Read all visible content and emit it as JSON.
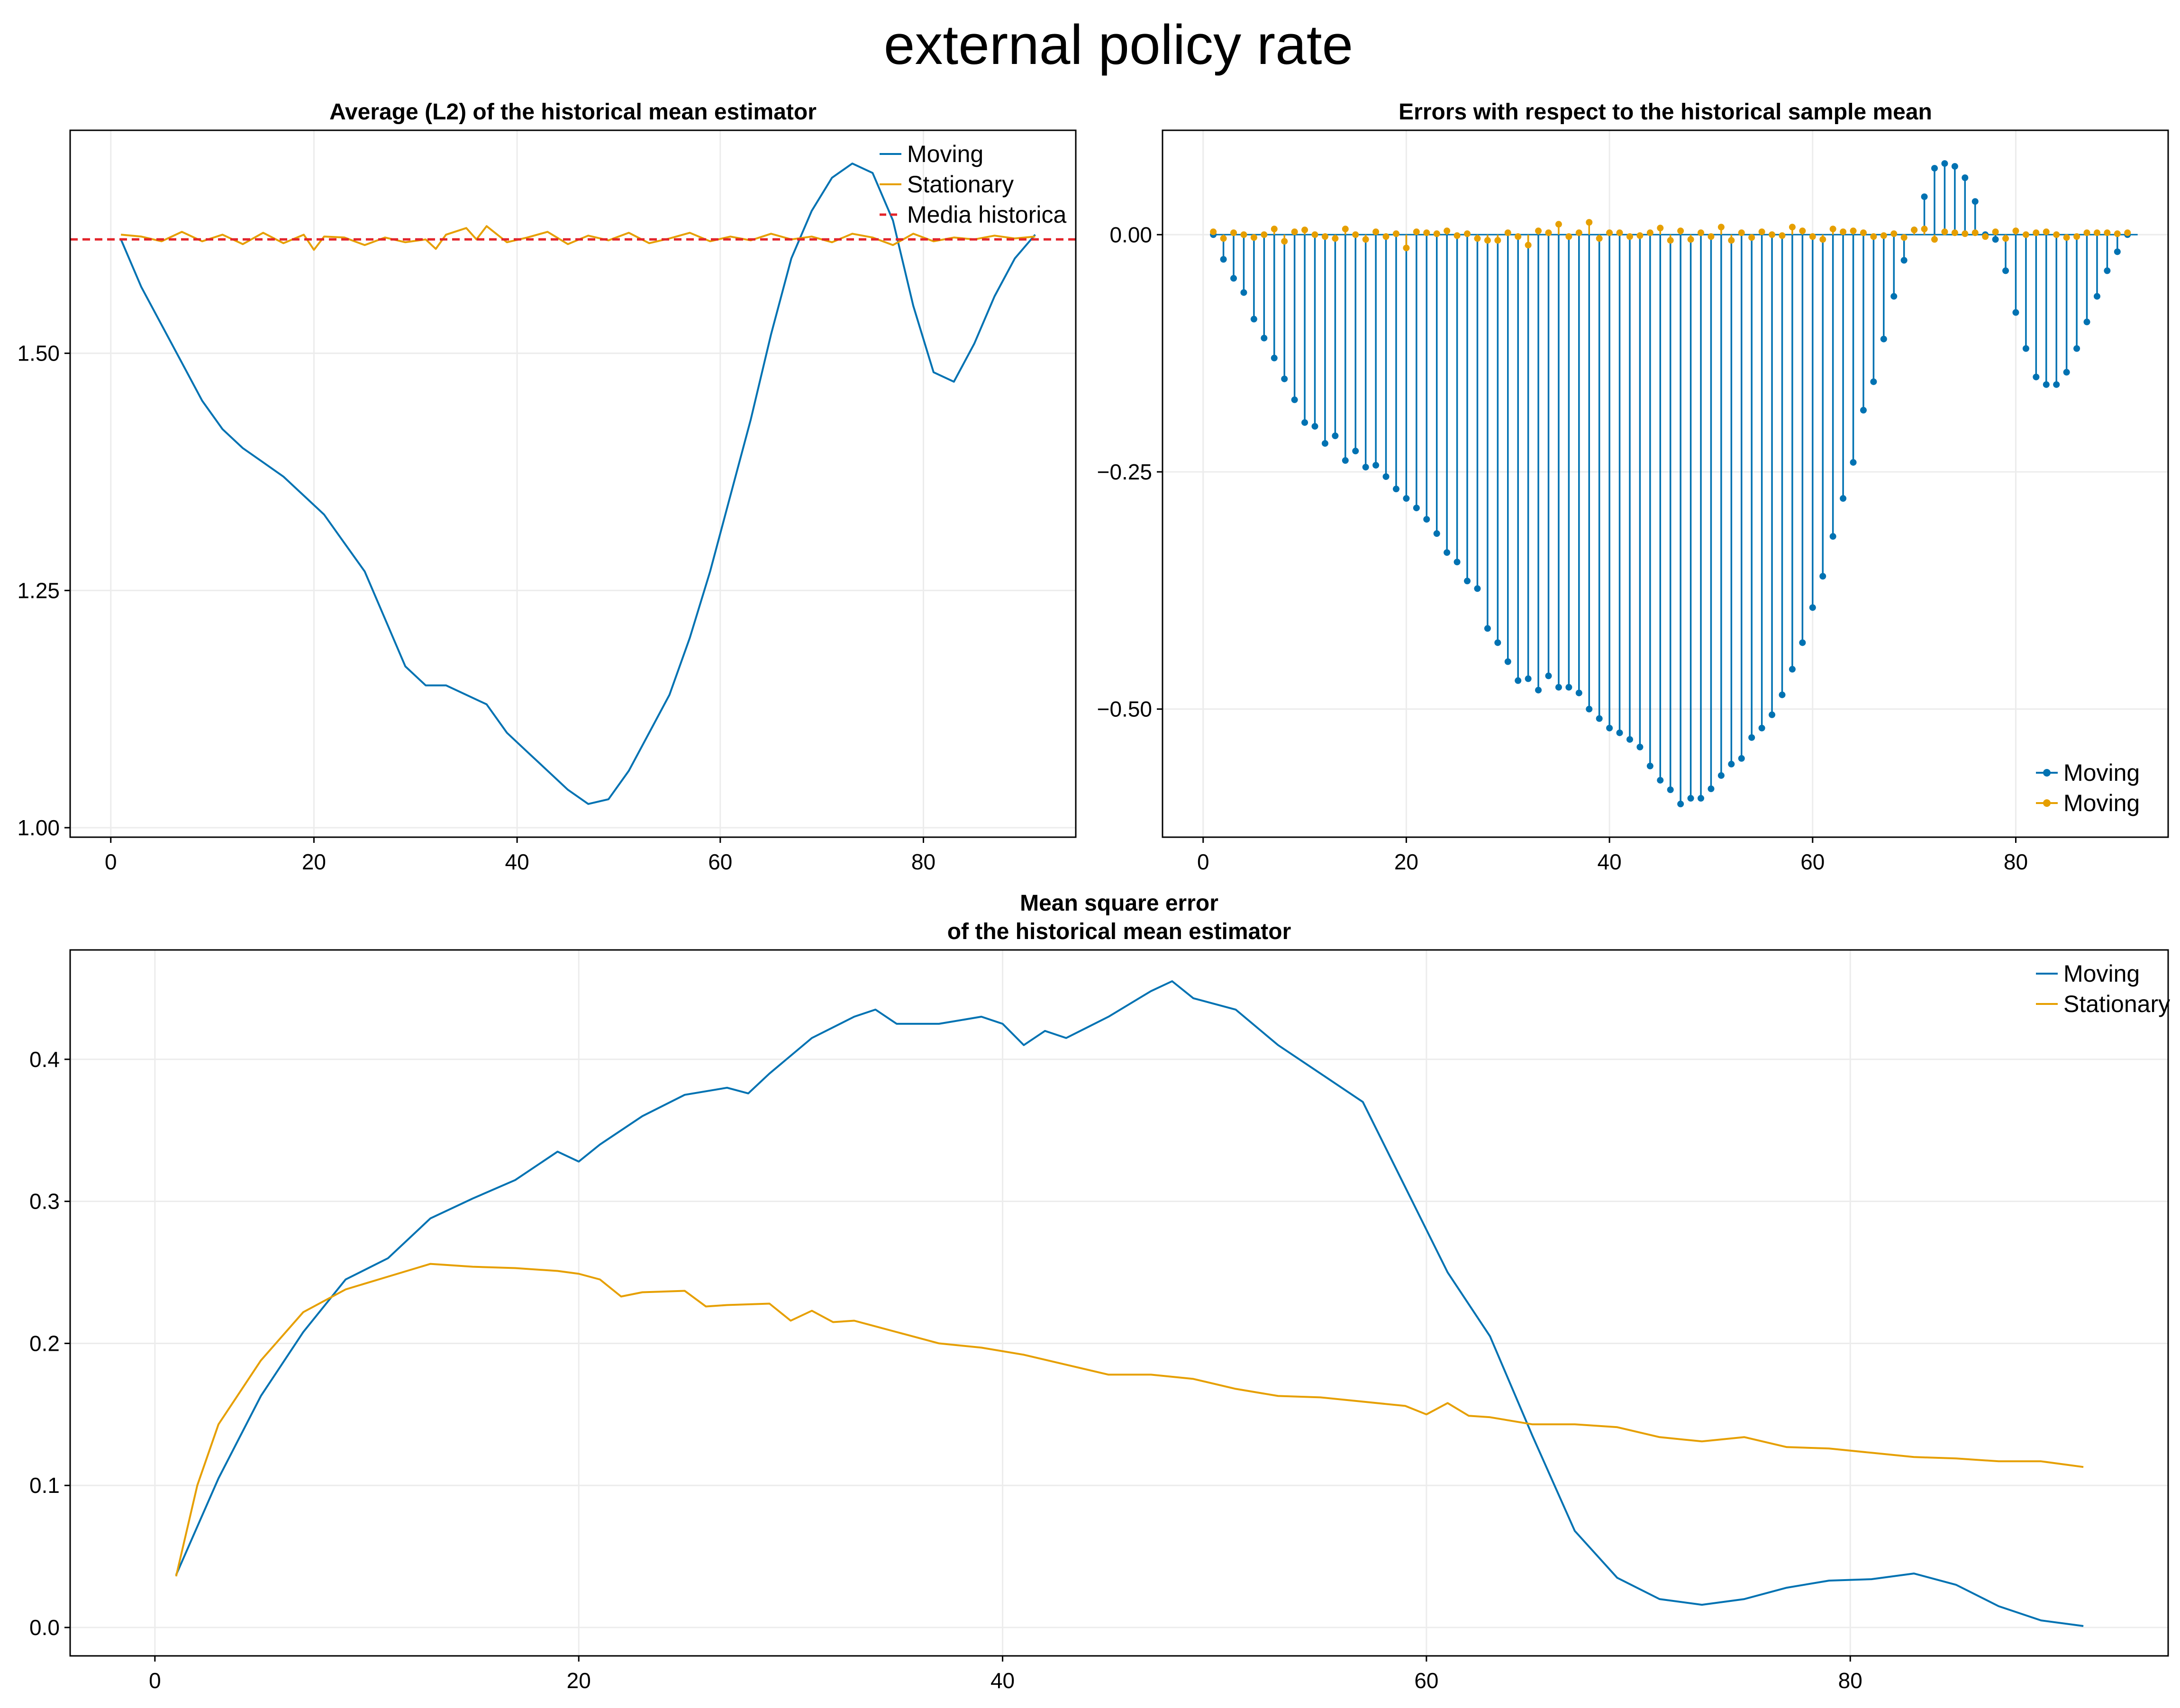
{
  "figure": {
    "title": "external policy rate"
  },
  "colors": {
    "moving": "#0072b2",
    "stationary": "#e69f00",
    "reference": "#e3242b",
    "grid": "#ececec",
    "axis": "#000000"
  },
  "chart_data": [
    {
      "type": "line",
      "title": "Average (L2) of the historical mean estimator",
      "xlim": [
        -4,
        95
      ],
      "ylim": [
        0.99,
        1.735
      ],
      "xticks": [
        0,
        20,
        40,
        60,
        80
      ],
      "xtick_labels": [
        "0",
        "20",
        "40",
        "60",
        "80"
      ],
      "yticks": [
        1.0,
        1.25,
        1.5
      ],
      "ytick_labels": [
        "1.00",
        "1.25",
        "1.50"
      ],
      "grid": true,
      "legend_position": "top-right",
      "series": [
        {
          "name": "Moving",
          "color": "#0072b2",
          "kind": "line",
          "x": [
            1,
            3,
            5,
            7,
            9,
            11,
            13,
            15,
            17,
            19,
            21,
            23,
            25,
            27,
            29,
            31,
            33,
            35,
            37,
            39,
            41,
            43,
            45,
            47,
            49,
            51,
            53,
            55,
            57,
            59,
            61,
            63,
            65,
            67,
            69,
            71,
            73,
            75,
            77,
            79,
            81,
            83,
            85,
            87,
            89,
            91
          ],
          "y": [
            1.62,
            1.57,
            1.53,
            1.49,
            1.45,
            1.42,
            1.4,
            1.385,
            1.37,
            1.35,
            1.33,
            1.3,
            1.27,
            1.22,
            1.17,
            1.15,
            1.15,
            1.14,
            1.13,
            1.1,
            1.08,
            1.06,
            1.04,
            1.025,
            1.03,
            1.06,
            1.1,
            1.14,
            1.2,
            1.27,
            1.35,
            1.43,
            1.52,
            1.6,
            1.65,
            1.685,
            1.7,
            1.69,
            1.64,
            1.55,
            1.48,
            1.47,
            1.51,
            1.56,
            1.6,
            1.625
          ]
        },
        {
          "name": "Stationary",
          "color": "#e69f00",
          "kind": "line",
          "x": [
            1,
            3,
            5,
            7,
            9,
            11,
            13,
            15,
            17,
            19,
            20,
            21,
            23,
            25,
            27,
            29,
            31,
            32,
            33,
            35,
            36,
            37,
            39,
            41,
            43,
            45,
            47,
            49,
            51,
            53,
            55,
            57,
            59,
            61,
            63,
            65,
            67,
            69,
            71,
            73,
            75,
            77,
            79,
            81,
            83,
            85,
            87,
            89,
            91
          ],
          "y": [
            1.625,
            1.623,
            1.618,
            1.628,
            1.618,
            1.625,
            1.615,
            1.627,
            1.616,
            1.625,
            1.609,
            1.623,
            1.622,
            1.614,
            1.622,
            1.617,
            1.62,
            1.61,
            1.625,
            1.632,
            1.62,
            1.634,
            1.617,
            1.622,
            1.628,
            1.615,
            1.624,
            1.619,
            1.627,
            1.616,
            1.621,
            1.627,
            1.618,
            1.623,
            1.619,
            1.626,
            1.62,
            1.623,
            1.617,
            1.626,
            1.622,
            1.614,
            1.626,
            1.618,
            1.622,
            1.62,
            1.624,
            1.621,
            1.623
          ]
        },
        {
          "name": "Media historica",
          "color": "#e3242b",
          "kind": "hline",
          "value": 1.62
        }
      ]
    },
    {
      "type": "stem",
      "title": "Errors with respect to the historical sample mean",
      "xlim": [
        -4,
        95
      ],
      "ylim": [
        -0.635,
        0.11
      ],
      "xticks": [
        0,
        20,
        40,
        60,
        80
      ],
      "xtick_labels": [
        "0",
        "20",
        "40",
        "60",
        "80"
      ],
      "yticks": [
        -0.5,
        -0.25,
        0.0
      ],
      "ytick_labels": [
        "−0.50",
        "−0.25",
        "0.00"
      ],
      "grid": true,
      "legend_position": "bottom-right",
      "series": [
        {
          "name": "Moving",
          "color": "#0072b2",
          "x": [
            1,
            2,
            3,
            4,
            5,
            6,
            7,
            8,
            9,
            10,
            11,
            12,
            13,
            14,
            15,
            16,
            17,
            18,
            19,
            20,
            21,
            22,
            23,
            24,
            25,
            26,
            27,
            28,
            29,
            30,
            31,
            32,
            33,
            34,
            35,
            36,
            37,
            38,
            39,
            40,
            41,
            42,
            43,
            44,
            45,
            46,
            47,
            48,
            49,
            50,
            51,
            52,
            53,
            54,
            55,
            56,
            57,
            58,
            59,
            60,
            61,
            62,
            63,
            64,
            65,
            66,
            67,
            68,
            69,
            70,
            71,
            72,
            73,
            74,
            75,
            76,
            77,
            78,
            79,
            80,
            81,
            82,
            83,
            84,
            85,
            86,
            87,
            88,
            89,
            90,
            91
          ],
          "y": [
            0,
            -0.026,
            -0.046,
            -0.061,
            -0.089,
            -0.109,
            -0.13,
            -0.152,
            -0.174,
            -0.198,
            -0.202,
            -0.22,
            -0.212,
            -0.238,
            -0.228,
            -0.245,
            -0.243,
            -0.255,
            -0.268,
            -0.278,
            -0.288,
            -0.3,
            -0.315,
            -0.335,
            -0.345,
            -0.365,
            -0.373,
            -0.415,
            -0.43,
            -0.45,
            -0.47,
            -0.468,
            -0.48,
            -0.465,
            -0.477,
            -0.477,
            -0.483,
            -0.5,
            -0.51,
            -0.52,
            -0.525,
            -0.532,
            -0.54,
            -0.56,
            -0.575,
            -0.585,
            -0.6,
            -0.594,
            -0.594,
            -0.584,
            -0.57,
            -0.558,
            -0.552,
            -0.53,
            -0.52,
            -0.506,
            -0.485,
            -0.458,
            -0.43,
            -0.393,
            -0.36,
            -0.318,
            -0.278,
            -0.24,
            -0.185,
            -0.155,
            -0.11,
            -0.065,
            -0.027,
            0.005,
            0.04,
            0.07,
            0.075,
            0.072,
            0.06,
            0.035,
            0,
            -0.005,
            -0.038,
            -0.082,
            -0.12,
            -0.15,
            -0.158,
            -0.158,
            -0.145,
            -0.12,
            -0.092,
            -0.065,
            -0.038,
            -0.018,
            0
          ]
        },
        {
          "name": "Moving",
          "color": "#e69f00",
          "x": [
            1,
            2,
            3,
            4,
            5,
            6,
            7,
            8,
            9,
            10,
            11,
            12,
            13,
            14,
            15,
            16,
            17,
            18,
            19,
            20,
            21,
            22,
            23,
            24,
            25,
            26,
            27,
            28,
            29,
            30,
            31,
            32,
            33,
            34,
            35,
            36,
            37,
            38,
            39,
            40,
            41,
            42,
            43,
            44,
            45,
            46,
            47,
            48,
            49,
            50,
            51,
            52,
            53,
            54,
            55,
            56,
            57,
            58,
            59,
            60,
            61,
            62,
            63,
            64,
            65,
            66,
            67,
            68,
            69,
            70,
            71,
            72,
            73,
            74,
            75,
            76,
            77,
            78,
            79,
            80,
            81,
            82,
            83,
            84,
            85,
            86,
            87,
            88,
            89,
            90,
            91
          ],
          "y": [
            0.003,
            -0.004,
            0.002,
            0,
            -0.003,
            0,
            0.006,
            -0.007,
            0.003,
            0.005,
            0,
            -0.002,
            -0.004,
            0.006,
            0,
            -0.005,
            0.003,
            -0.002,
            0.001,
            -0.014,
            0.003,
            0.002,
            0.001,
            0.004,
            -0.001,
            0.001,
            -0.004,
            -0.006,
            -0.006,
            0.002,
            -0.002,
            -0.011,
            0.004,
            0.002,
            0.011,
            -0.002,
            0.002,
            0.013,
            -0.004,
            0.002,
            0.002,
            -0.002,
            -0.001,
            0.002,
            0.007,
            -0.006,
            0.004,
            -0.005,
            0.002,
            -0.002,
            0.008,
            -0.006,
            0.002,
            -0.003,
            0.003,
            0,
            -0.001,
            0.008,
            0.004,
            -0.002,
            -0.005,
            0.006,
            0.003,
            0.004,
            0.002,
            -0.002,
            -0.001,
            0.001,
            -0.003,
            0.005,
            0.006,
            -0.005,
            0.003,
            0.002,
            0.001,
            0.002,
            -0.002,
            0.003,
            -0.004,
            0.004,
            0,
            0.002,
            0.003,
            0,
            -0.003,
            -0.002,
            0.002,
            0.002,
            0.002,
            0.001,
            0.002
          ]
        }
      ]
    },
    {
      "type": "line",
      "title": [
        "Mean square error",
        "of the historical mean estimator"
      ],
      "xlim": [
        -4,
        95
      ],
      "ylim": [
        -0.02,
        0.477
      ],
      "xticks": [
        0,
        20,
        40,
        60,
        80
      ],
      "xtick_labels": [
        "0",
        "20",
        "40",
        "60",
        "80"
      ],
      "yticks": [
        0.0,
        0.1,
        0.2,
        0.3,
        0.4
      ],
      "ytick_labels": [
        "0.0",
        "0.1",
        "0.2",
        "0.3",
        "0.4"
      ],
      "grid": true,
      "legend_position": "top-right",
      "series": [
        {
          "name": "Moving",
          "color": "#0072b2",
          "kind": "line",
          "x": [
            1,
            3,
            5,
            7,
            9,
            11,
            13,
            15,
            17,
            19,
            20,
            21,
            23,
            25,
            27,
            28,
            29,
            31,
            33,
            34,
            35,
            37,
            39,
            40,
            41,
            42,
            43,
            45,
            47,
            48,
            49,
            51,
            53,
            55,
            57,
            59,
            61,
            63,
            65,
            67,
            69,
            71,
            73,
            75,
            77,
            79,
            81,
            83,
            85,
            87,
            89,
            91
          ],
          "y": [
            0.037,
            0.105,
            0.163,
            0.208,
            0.245,
            0.26,
            0.288,
            0.302,
            0.315,
            0.335,
            0.328,
            0.34,
            0.36,
            0.375,
            0.38,
            0.376,
            0.39,
            0.415,
            0.43,
            0.435,
            0.425,
            0.425,
            0.43,
            0.425,
            0.41,
            0.42,
            0.415,
            0.43,
            0.448,
            0.455,
            0.443,
            0.435,
            0.41,
            0.39,
            0.37,
            0.31,
            0.25,
            0.205,
            0.135,
            0.068,
            0.035,
            0.02,
            0.016,
            0.02,
            0.028,
            0.033,
            0.034,
            0.038,
            0.03,
            0.015,
            0.005,
            0.001
          ]
        },
        {
          "name": "Stationary",
          "color": "#e69f00",
          "kind": "line",
          "x": [
            1,
            2,
            3,
            5,
            7,
            9,
            11,
            13,
            15,
            17,
            19,
            20,
            21,
            22,
            23,
            25,
            26,
            27,
            29,
            30,
            31,
            32,
            33,
            35,
            37,
            39,
            41,
            43,
            45,
            47,
            49,
            51,
            53,
            55,
            57,
            59,
            60,
            61,
            62,
            63,
            65,
            67,
            69,
            71,
            73,
            75,
            77,
            79,
            81,
            83,
            85,
            87,
            89,
            91
          ],
          "y": [
            0.036,
            0.1,
            0.143,
            0.188,
            0.222,
            0.238,
            0.247,
            0.256,
            0.254,
            0.253,
            0.251,
            0.249,
            0.245,
            0.233,
            0.236,
            0.237,
            0.226,
            0.227,
            0.228,
            0.216,
            0.223,
            0.215,
            0.216,
            0.208,
            0.2,
            0.197,
            0.192,
            0.185,
            0.178,
            0.178,
            0.175,
            0.168,
            0.163,
            0.162,
            0.159,
            0.156,
            0.15,
            0.158,
            0.149,
            0.148,
            0.143,
            0.143,
            0.141,
            0.134,
            0.131,
            0.134,
            0.127,
            0.126,
            0.123,
            0.12,
            0.119,
            0.117,
            0.117,
            0.113
          ]
        }
      ]
    }
  ]
}
